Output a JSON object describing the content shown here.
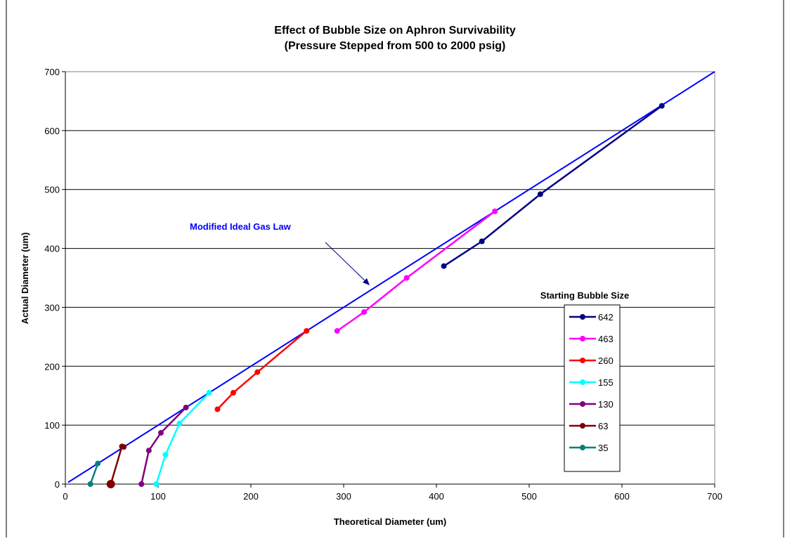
{
  "chart_data": {
    "type": "line",
    "title_line1": "Effect of Bubble Size on Aphron Survivability",
    "title_line2": "(Pressure Stepped from 500 to 2000 psig)",
    "xlabel": "Theoretical Diameter (um)",
    "ylabel": "Actual Diameter (um)",
    "xlim": [
      0,
      700
    ],
    "ylim": [
      0,
      700
    ],
    "xticks": [
      0,
      100,
      200,
      300,
      400,
      500,
      600,
      700
    ],
    "yticks": [
      0,
      100,
      200,
      300,
      400,
      500,
      600,
      700
    ],
    "grid": "horizontal",
    "legend_title": "Starting Bubble Size",
    "legend_position": "right",
    "reference_line": {
      "label": "Modified Ideal Gas Law",
      "color": "#0000FF",
      "x": [
        3,
        700
      ],
      "y": [
        3,
        700
      ]
    },
    "series": [
      {
        "name": "642",
        "color": "#000080",
        "x": [
          408,
          449,
          512,
          643
        ],
        "y": [
          370,
          412,
          492,
          642
        ]
      },
      {
        "name": "463",
        "color": "#FF00FF",
        "x": [
          293,
          322,
          368,
          463
        ],
        "y": [
          260,
          292,
          350,
          463
        ]
      },
      {
        "name": "260",
        "color": "#FF0000",
        "x": [
          164,
          181,
          207,
          260
        ],
        "y": [
          127,
          155,
          190,
          260
        ]
      },
      {
        "name": "155",
        "color": "#00FFFF",
        "x": [
          98,
          108,
          123,
          155
        ],
        "y": [
          0,
          50,
          103,
          155
        ]
      },
      {
        "name": "130",
        "color": "#800080",
        "x": [
          82,
          90,
          103,
          130
        ],
        "y": [
          0,
          57,
          87,
          130
        ]
      },
      {
        "name": "63",
        "color": "#800000",
        "x": [
          49,
          61,
          63
        ],
        "y": [
          0,
          64,
          63
        ]
      },
      {
        "name": "35",
        "color": "#008080",
        "x": [
          27,
          35
        ],
        "y": [
          0,
          35
        ]
      }
    ]
  }
}
